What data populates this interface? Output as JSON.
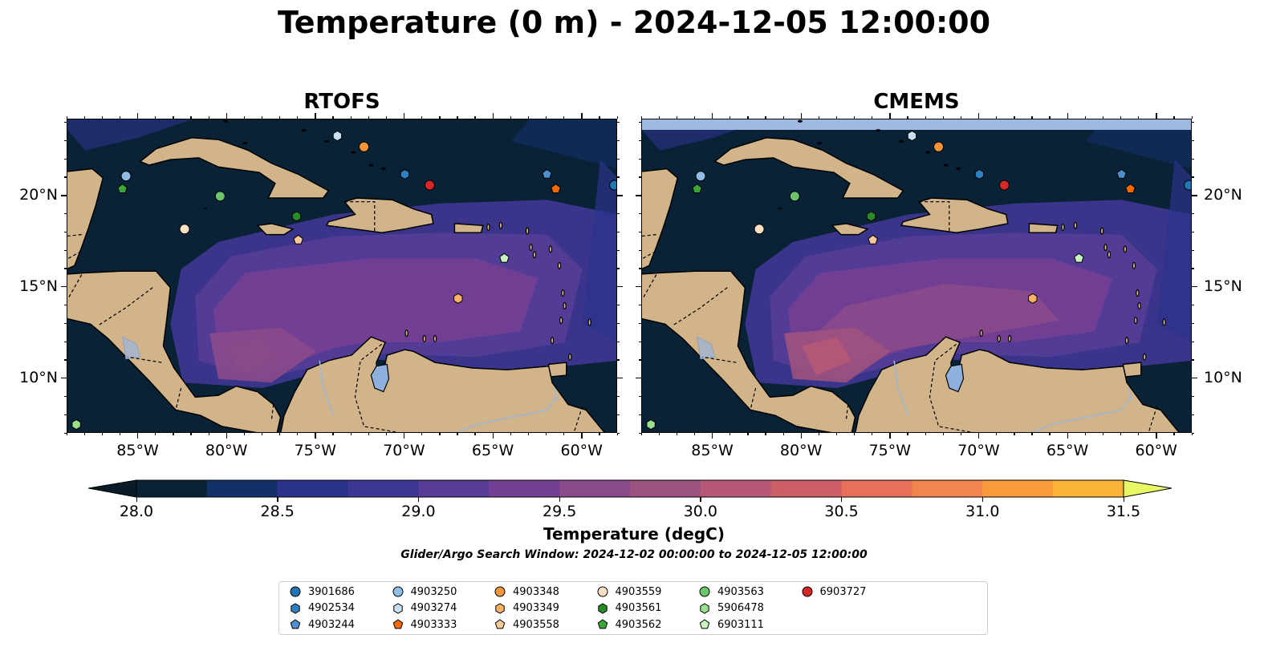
{
  "title": "Temperature (0 m) - 2024-12-05 12:00:00",
  "panels": [
    {
      "title": "RTOFS"
    },
    {
      "title": "CMEMS"
    }
  ],
  "map_extent": {
    "lon": [
      -89,
      -58
    ],
    "lat": [
      7,
      24.2
    ]
  },
  "lon_ticks": [
    {
      "value": -85,
      "label": "85°W"
    },
    {
      "value": -80,
      "label": "80°W"
    },
    {
      "value": -75,
      "label": "75°W"
    },
    {
      "value": -70,
      "label": "70°W"
    },
    {
      "value": -65,
      "label": "65°W"
    },
    {
      "value": -60,
      "label": "60°W"
    }
  ],
  "lat_ticks": [
    {
      "value": 20,
      "label": "20°N"
    },
    {
      "value": 15,
      "label": "15°N"
    },
    {
      "value": 10,
      "label": "10°N"
    }
  ],
  "colorbar": {
    "label": "Temperature (degC)",
    "min": 28.0,
    "max": 31.5,
    "ticks": [
      "28.0",
      "28.5",
      "29.0",
      "29.5",
      "30.0",
      "30.5",
      "31.0",
      "31.5"
    ],
    "colors": [
      "#0a2236",
      "#12306a",
      "#2b338c",
      "#3f3795",
      "#573d97",
      "#733f93",
      "#8a4a8a",
      "#9e527f",
      "#b55877",
      "#cc6066",
      "#e6705a",
      "#f2844e",
      "#f99a3c",
      "#fbb33a",
      "#f6d24a"
    ],
    "extend_low": "#081b26",
    "extend_high": "#e8f862"
  },
  "search_window": "Glider/Argo Search Window: 2024-12-02 00:00:00 to 2024-12-05 12:00:00",
  "colors": {
    "ocean_deep": "#0a2236",
    "land": "#d1b48a",
    "lake": "#8eb0dd",
    "missing_band": "#9eb8e0"
  },
  "floats": [
    {
      "id": "3901686",
      "marker": "circle",
      "color": "#1f77b4",
      "lon": -58.2,
      "lat": 20.6
    },
    {
      "id": "4902534",
      "marker": "hexagon",
      "color": "#2e80c0",
      "lon": -70.0,
      "lat": 21.2
    },
    {
      "id": "4903244",
      "marker": "pentagon",
      "color": "#4f8fcf",
      "lon": -62.0,
      "lat": 21.2
    },
    {
      "id": "4903250",
      "marker": "circle",
      "color": "#8fbde6",
      "lon": -85.7,
      "lat": 21.1
    },
    {
      "id": "4903274",
      "marker": "hexagon",
      "color": "#c6e0f5",
      "lon": -73.8,
      "lat": 23.3
    },
    {
      "id": "4903333",
      "marker": "pentagon",
      "color": "#f56a00",
      "lon": -61.5,
      "lat": 20.4
    },
    {
      "id": "4903348",
      "marker": "circle",
      "color": "#f5953a",
      "lon": -72.3,
      "lat": 22.7
    },
    {
      "id": "4903349",
      "marker": "hexagon",
      "color": "#fbb266",
      "lon": -67.0,
      "lat": 14.4
    },
    {
      "id": "4903558",
      "marker": "pentagon",
      "color": "#f9c79a",
      "lon": -76.0,
      "lat": 17.6
    },
    {
      "id": "4903559",
      "marker": "circle",
      "color": "#fde0c5",
      "lon": -82.4,
      "lat": 18.2
    },
    {
      "id": "4903561",
      "marker": "hexagon",
      "color": "#2a8a2a",
      "lon": -76.1,
      "lat": 18.9
    },
    {
      "id": "4903562",
      "marker": "pentagon",
      "color": "#3aa63a",
      "lon": -85.9,
      "lat": 20.4
    },
    {
      "id": "4903563",
      "marker": "circle",
      "color": "#6cc46c",
      "lon": -80.4,
      "lat": 20.0
    },
    {
      "id": "5906478",
      "marker": "hexagon",
      "color": "#98e08e",
      "lon": -88.5,
      "lat": 7.5
    },
    {
      "id": "6903111",
      "marker": "pentagon",
      "color": "#c8f5c0",
      "lon": -64.4,
      "lat": 16.6
    },
    {
      "id": "6903727",
      "marker": "circle",
      "color": "#d62728",
      "lon": -68.6,
      "lat": 20.6
    }
  ]
}
